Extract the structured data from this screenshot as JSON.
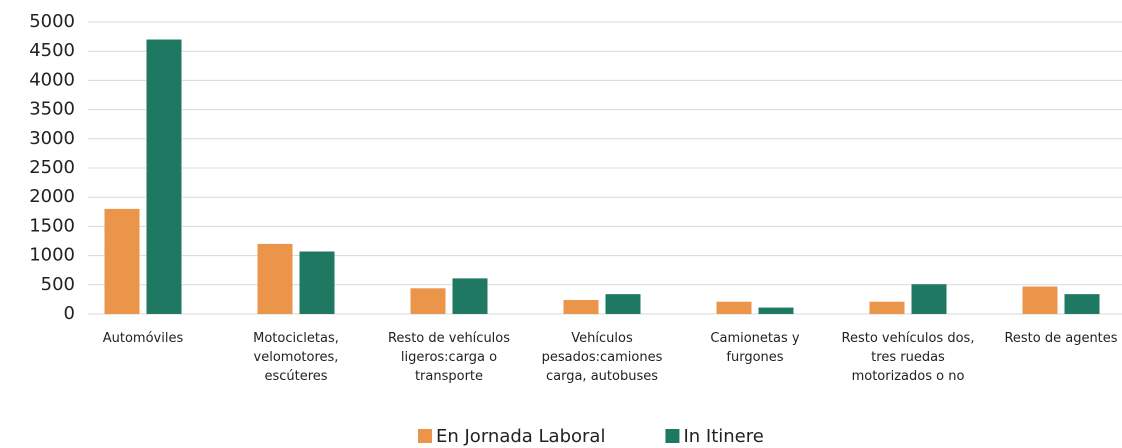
{
  "chart_data": {
    "type": "bar",
    "categories": [
      "Automóviles",
      "Motocicletas, velomotores, escúteres",
      "Resto de vehículos ligeros:carga o transporte",
      "Vehículos pesados:camiones carga, autobuses",
      "Camionetas y furgones",
      "Resto vehículos dos, tres ruedas motorizados o no",
      "Resto de agentes"
    ],
    "series": [
      {
        "name": "En Jornada Laboral",
        "color": "#ea9549",
        "values": [
          1800,
          1200,
          440,
          240,
          210,
          210,
          470
        ]
      },
      {
        "name": "In Itinere",
        "color": "#1f7862",
        "values": [
          4700,
          1070,
          610,
          340,
          110,
          510,
          340
        ]
      }
    ],
    "ylim": [
      0,
      5000
    ],
    "yticks": [
      0,
      500,
      1000,
      1500,
      2000,
      2500,
      3000,
      3500,
      4000,
      4500,
      5000
    ],
    "grid": true,
    "legend": "bottom"
  }
}
